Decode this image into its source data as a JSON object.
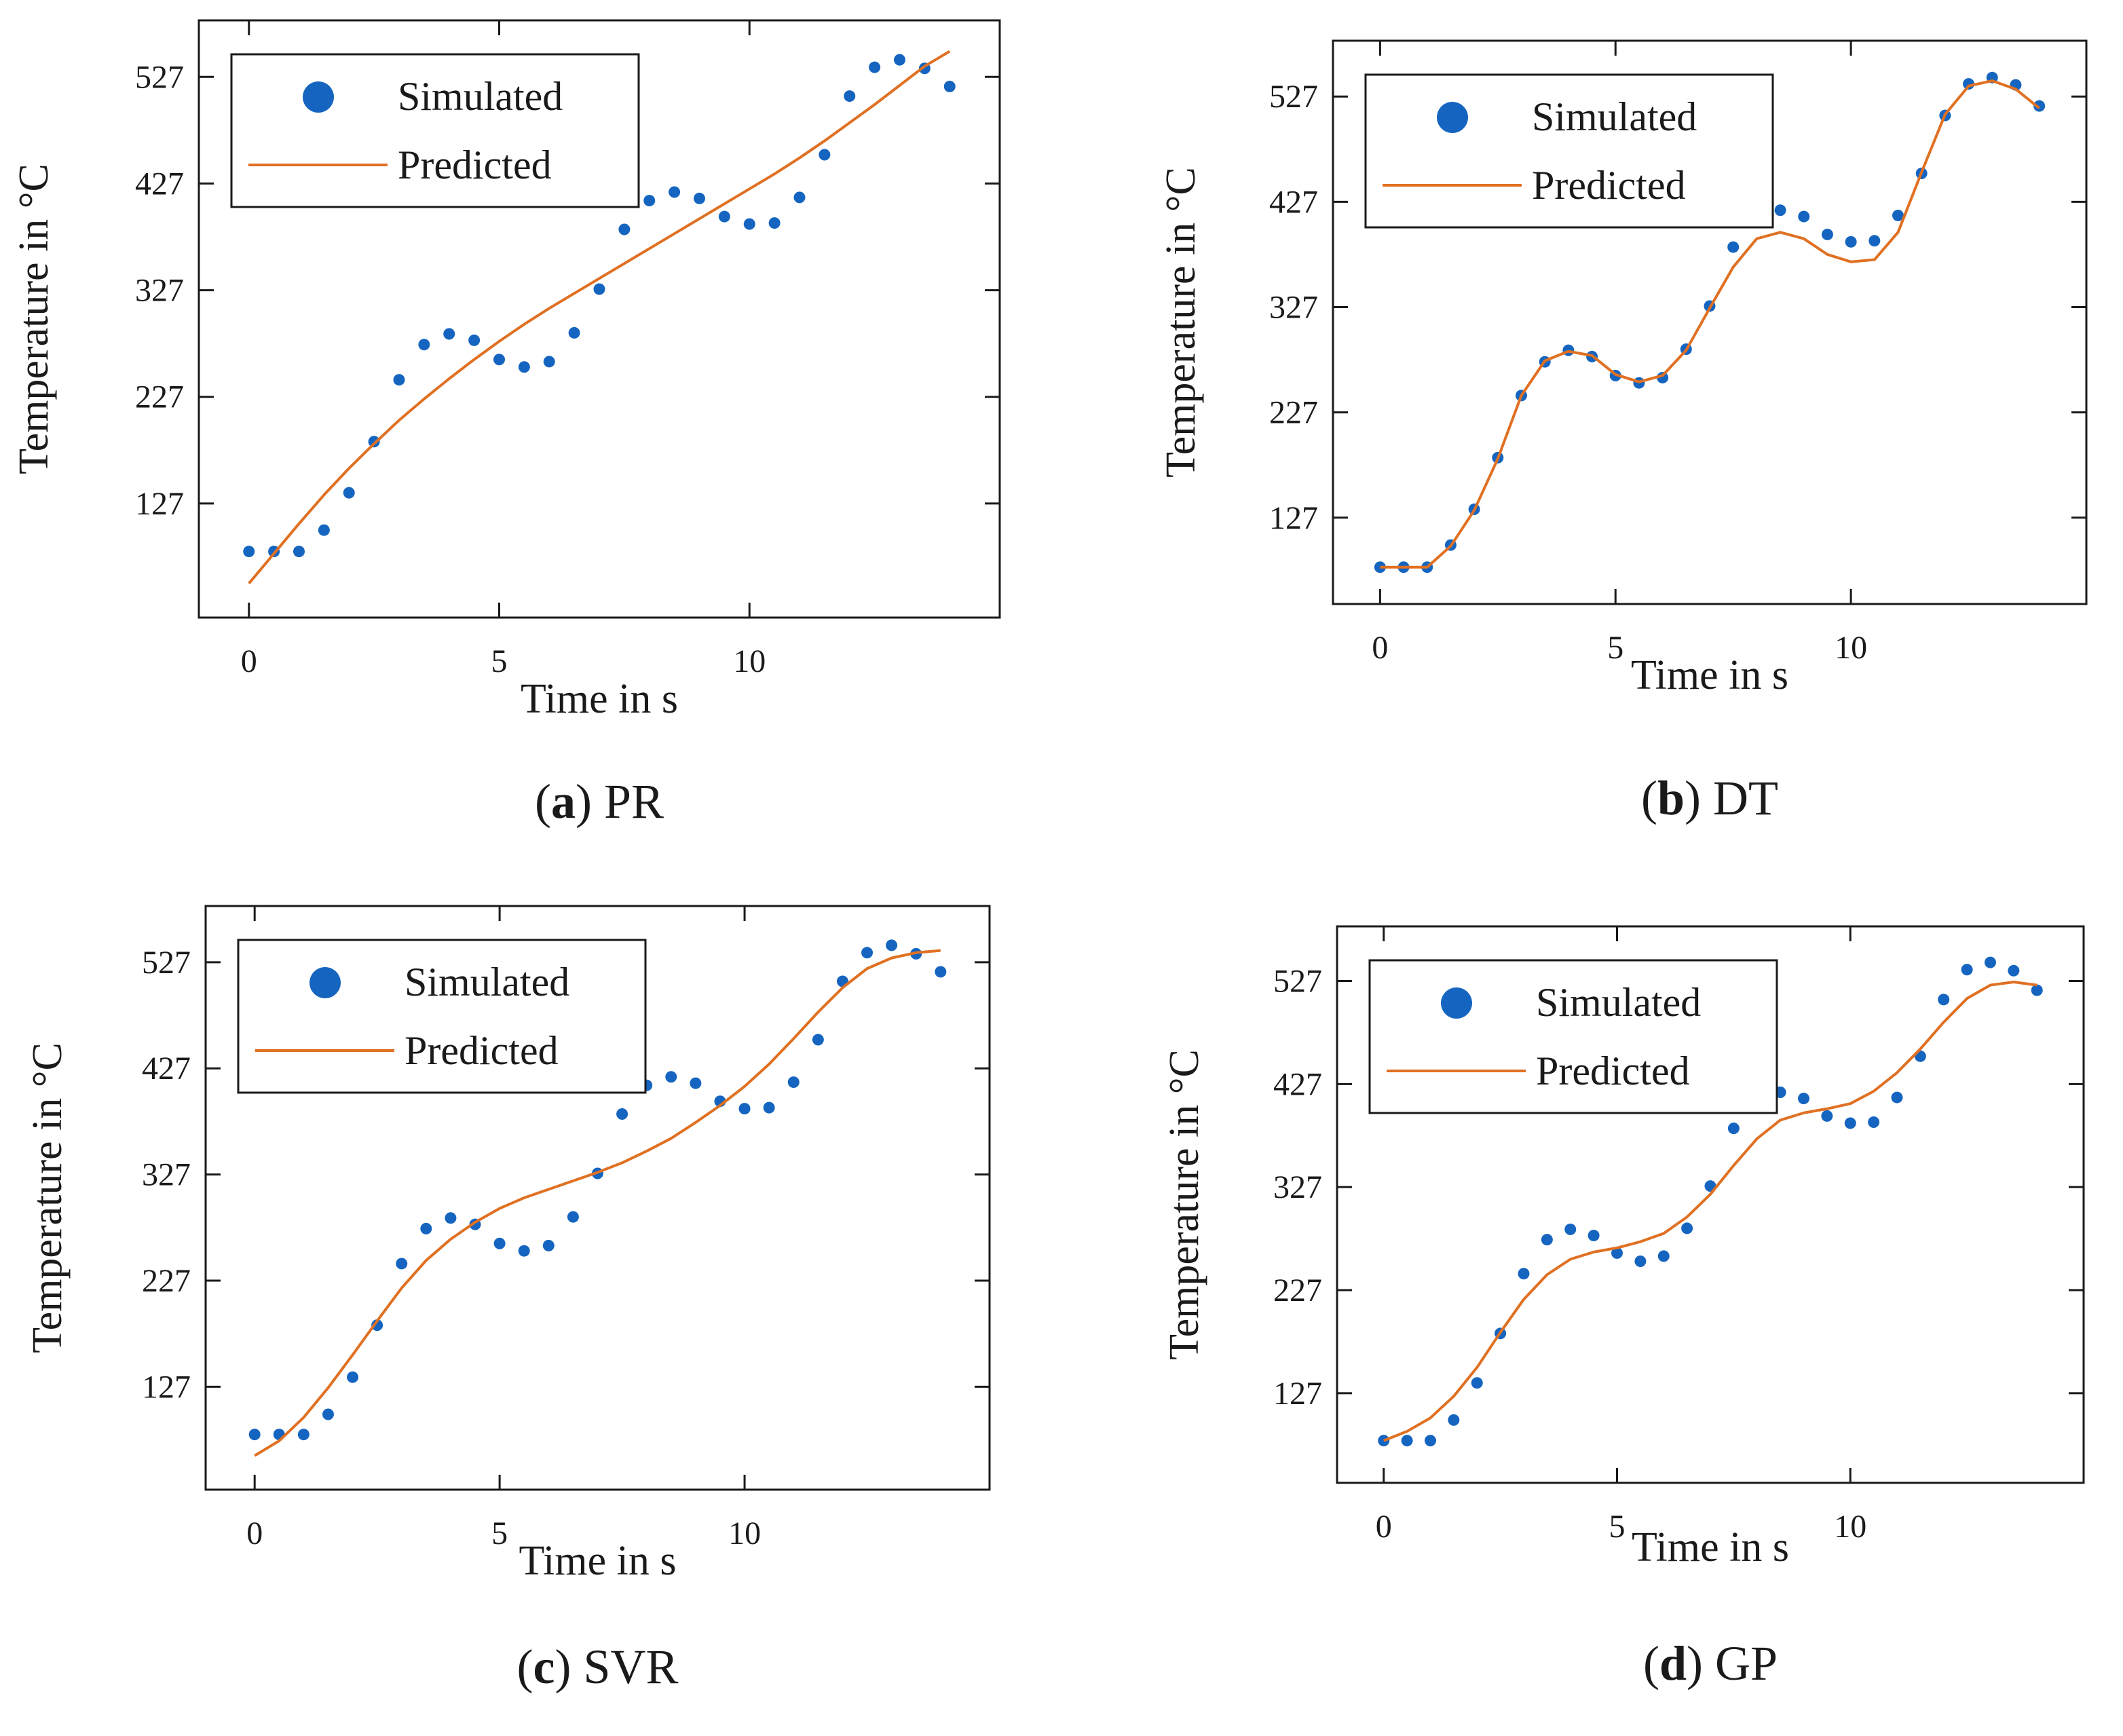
{
  "colors": {
    "simulated": "#1565c0",
    "predicted": "#e07022",
    "axis": "#1a1a1a"
  },
  "chart_data": [
    {
      "type": "line",
      "panel_letter": "a",
      "panel_name": "PR",
      "xlabel": "Time in s",
      "ylabel": "Temperature in °C",
      "xticks": [
        0,
        5,
        10
      ],
      "yticks": [
        127,
        227,
        327,
        427,
        527
      ],
      "xlim": [
        -1,
        15
      ],
      "ylim": [
        20,
        580
      ],
      "legend": {
        "position": "top-left",
        "entries": [
          "Simulated",
          "Predicted"
        ]
      },
      "series": [
        {
          "name": "Simulated",
          "style": "points",
          "x": [
            0,
            0.5,
            1,
            1.5,
            2,
            2.5,
            3,
            3.5,
            4,
            4.5,
            5,
            5.5,
            6,
            6.5,
            7,
            7.5,
            8,
            8.5,
            9,
            9.5,
            10,
            10.5,
            11,
            11.5,
            12,
            12.5,
            13,
            13.5,
            14
          ],
          "y": [
            82,
            82,
            82,
            102,
            137,
            185,
            243,
            276,
            286,
            280,
            262,
            255,
            260,
            287,
            328,
            384,
            411,
            419,
            413,
            396,
            389,
            390,
            414,
            454,
            509,
            536,
            543,
            535,
            518
          ]
        },
        {
          "name": "Predicted",
          "style": "line",
          "x": [
            0,
            0.5,
            1,
            1.5,
            2,
            2.5,
            3,
            3.5,
            4,
            4.5,
            5,
            5.5,
            6,
            6.5,
            7,
            7.5,
            8,
            8.5,
            9,
            9.5,
            10,
            10.5,
            11,
            11.5,
            12,
            12.5,
            13,
            13.5,
            14
          ],
          "y": [
            52,
            80,
            108,
            135,
            160,
            183,
            205,
            225,
            244,
            262,
            279,
            295,
            310,
            324,
            338,
            352,
            366,
            380,
            394,
            408,
            422,
            436,
            451,
            467,
            484,
            501,
            519,
            537,
            551
          ]
        }
      ]
    },
    {
      "type": "line",
      "panel_letter": "b",
      "panel_name": "DT",
      "xlabel": "Time in s",
      "ylabel": "Temperature in °C",
      "xticks": [
        0,
        5,
        10
      ],
      "yticks": [
        127,
        227,
        327,
        427,
        527
      ],
      "xlim": [
        -1,
        15
      ],
      "ylim": [
        45,
        580
      ],
      "legend": {
        "position": "top-left",
        "entries": [
          "Simulated",
          "Predicted"
        ]
      },
      "series": [
        {
          "name": "Simulated",
          "style": "points",
          "x": [
            0,
            0.5,
            1,
            1.5,
            2,
            2.5,
            3,
            3.5,
            4,
            4.5,
            5,
            5.5,
            6,
            6.5,
            7,
            7.5,
            8,
            8.5,
            9,
            9.5,
            10,
            10.5,
            11,
            11.5,
            12,
            12.5,
            13,
            13.5,
            14
          ],
          "y": [
            80,
            80,
            80,
            101,
            135,
            184,
            243,
            275,
            286,
            280,
            262,
            255,
            260,
            287,
            328,
            384,
            411,
            419,
            413,
            396,
            389,
            390,
            414,
            454,
            509,
            539,
            545,
            538,
            518
          ]
        },
        {
          "name": "Predicted",
          "style": "line",
          "x": [
            0,
            0.5,
            1,
            1.5,
            2,
            2.5,
            3,
            3.5,
            4,
            4.5,
            5,
            5.5,
            6,
            6.5,
            7,
            7.5,
            8,
            8.5,
            9,
            9.5,
            10,
            10.5,
            11,
            11.5,
            12,
            12.5,
            13,
            13.5,
            14
          ],
          "y": [
            80,
            80,
            80,
            100,
            134,
            183,
            243,
            276,
            285,
            281,
            263,
            256,
            262,
            286,
            326,
            365,
            392,
            398,
            392,
            377,
            370,
            372,
            398,
            455,
            510,
            537,
            542,
            534,
            516
          ]
        }
      ]
    },
    {
      "type": "line",
      "panel_letter": "c",
      "panel_name": "SVR",
      "xlabel": "Time in s",
      "ylabel": "Temperature in °C",
      "xticks": [
        0,
        5,
        10
      ],
      "yticks": [
        127,
        227,
        327,
        427,
        527
      ],
      "xlim": [
        -1,
        15
      ],
      "ylim": [
        30,
        580
      ],
      "legend": {
        "position": "top-left",
        "entries": [
          "Simulated",
          "Predicted"
        ]
      },
      "series": [
        {
          "name": "Simulated",
          "style": "points",
          "x": [
            0,
            0.5,
            1,
            1.5,
            2,
            2.5,
            3,
            3.5,
            4,
            4.5,
            5,
            5.5,
            6,
            6.5,
            7,
            7.5,
            8,
            8.5,
            9,
            9.5,
            10,
            10.5,
            11,
            11.5,
            12,
            12.5,
            13,
            13.5,
            14
          ],
          "y": [
            82,
            82,
            82,
            101,
            136,
            185,
            243,
            276,
            286,
            280,
            262,
            255,
            260,
            287,
            328,
            384,
            411,
            419,
            413,
            396,
            389,
            390,
            414,
            454,
            509,
            536,
            543,
            535,
            518
          ]
        },
        {
          "name": "Predicted",
          "style": "line",
          "x": [
            0,
            0.5,
            1,
            1.5,
            2,
            2.5,
            3,
            3.5,
            4,
            4.5,
            5,
            5.5,
            6,
            6.5,
            7,
            7.5,
            8,
            8.5,
            9,
            9.5,
            10,
            10.5,
            11,
            11.5,
            12,
            12.5,
            13,
            13.5,
            14
          ],
          "y": [
            62,
            76,
            98,
            126,
            157,
            189,
            220,
            246,
            266,
            282,
            295,
            305,
            313,
            321,
            329,
            338,
            349,
            361,
            376,
            392,
            410,
            431,
            455,
            480,
            503,
            521,
            531,
            536,
            538
          ]
        }
      ]
    },
    {
      "type": "line",
      "panel_letter": "d",
      "panel_name": "GP",
      "xlabel": "Time in s",
      "ylabel": "Temperature in °C",
      "xticks": [
        0,
        5,
        10
      ],
      "yticks": [
        127,
        227,
        327,
        427,
        527
      ],
      "xlim": [
        -1,
        15
      ],
      "ylim": [
        40,
        580
      ],
      "legend": {
        "position": "top-left",
        "entries": [
          "Simulated",
          "Predicted"
        ]
      },
      "series": [
        {
          "name": "Simulated",
          "style": "points",
          "x": [
            0,
            0.5,
            1,
            1.5,
            2,
            2.5,
            3,
            3.5,
            4,
            4.5,
            5,
            5.5,
            6,
            6.5,
            7,
            7.5,
            8,
            8.5,
            9,
            9.5,
            10,
            10.5,
            11,
            11.5,
            12,
            12.5,
            13,
            13.5,
            14
          ],
          "y": [
            81,
            81,
            81,
            101,
            137,
            185,
            243,
            276,
            286,
            280,
            263,
            255,
            260,
            287,
            328,
            384,
            411,
            419,
            413,
            396,
            389,
            390,
            414,
            454,
            509,
            538,
            545,
            537,
            518
          ]
        },
        {
          "name": "Predicted",
          "style": "line",
          "x": [
            0,
            0.5,
            1,
            1.5,
            2,
            2.5,
            3,
            3.5,
            4,
            4.5,
            5,
            5.5,
            6,
            6.5,
            7,
            7.5,
            8,
            8.5,
            9,
            9.5,
            10,
            10.5,
            11,
            11.5,
            12,
            12.5,
            13,
            13.5,
            14
          ],
          "y": [
            81,
            90,
            103,
            124,
            152,
            186,
            218,
            242,
            257,
            264,
            268,
            274,
            282,
            298,
            320,
            348,
            374,
            392,
            399,
            403,
            408,
            420,
            438,
            461,
            487,
            510,
            523,
            526,
            523
          ]
        }
      ]
    }
  ]
}
